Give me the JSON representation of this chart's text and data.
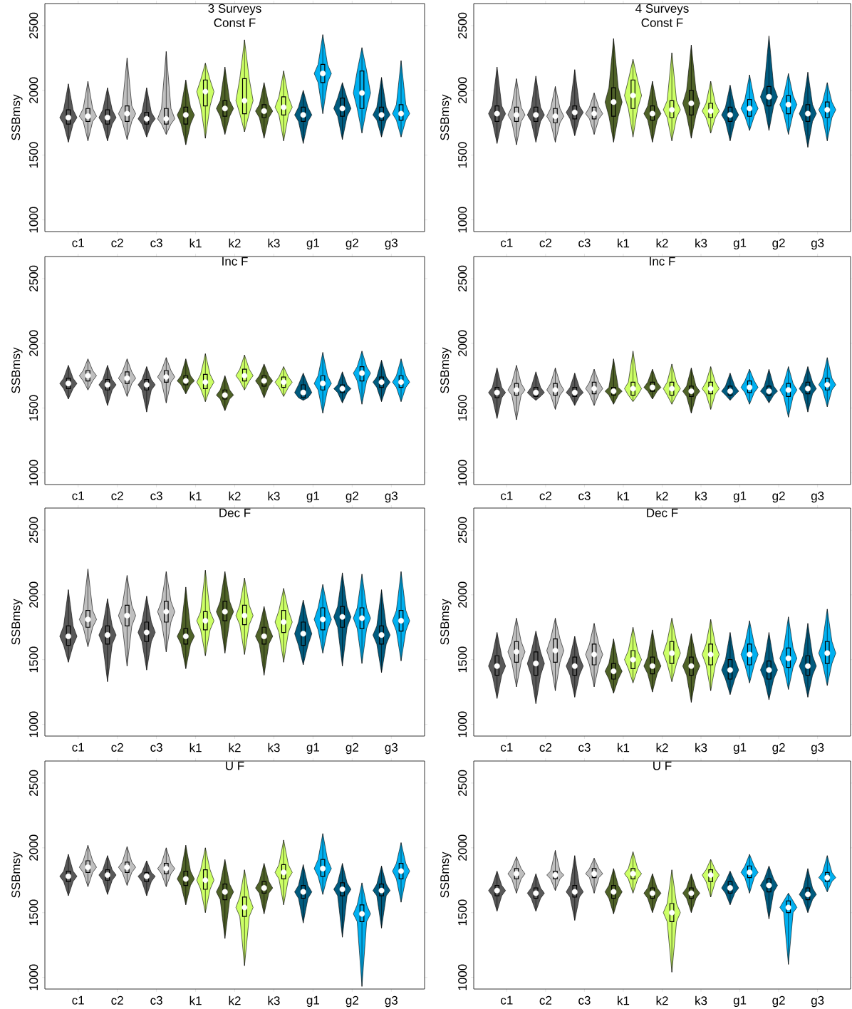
{
  "chart_data": [
    {
      "type": "box",
      "title": "3 Surveys",
      "subtitle": "Const F",
      "ylabel": "SSBmsy",
      "categories": [
        "c1",
        "c2",
        "c3",
        "k1",
        "k2",
        "k3",
        "g1",
        "g2",
        "g3"
      ],
      "ylim": [
        910,
        2670
      ],
      "yticks": [
        1000,
        1500,
        2000,
        2500
      ],
      "series": [
        {
          "colors": [
            "#595959",
            "#595959",
            "#595959",
            "#4f6228",
            "#4f6228",
            "#4f6228",
            "#005b7f",
            "#005b7f",
            "#005b7f"
          ],
          "boxes": [
            {
              "low": 1600,
              "q1": 1740,
              "median": 1790,
              "q3": 1850,
              "high": 2050
            },
            {
              "low": 1610,
              "q1": 1740,
              "median": 1790,
              "q3": 1850,
              "high": 2020
            },
            {
              "low": 1640,
              "q1": 1740,
              "median": 1780,
              "q3": 1830,
              "high": 2020
            },
            {
              "low": 1580,
              "q1": 1740,
              "median": 1810,
              "q3": 1870,
              "high": 2080
            },
            {
              "low": 1660,
              "q1": 1800,
              "median": 1860,
              "q3": 1920,
              "high": 2180
            },
            {
              "low": 1630,
              "q1": 1790,
              "median": 1840,
              "q3": 1890,
              "high": 2060
            },
            {
              "low": 1590,
              "q1": 1760,
              "median": 1810,
              "q3": 1870,
              "high": 2000
            },
            {
              "low": 1620,
              "q1": 1800,
              "median": 1860,
              "q3": 1940,
              "high": 2060
            },
            {
              "low": 1640,
              "q1": 1770,
              "median": 1810,
              "q3": 1870,
              "high": 2100
            }
          ]
        },
        {
          "colors": [
            "#bfbfbf",
            "#bfbfbf",
            "#bfbfbf",
            "#ccff66",
            "#ccff66",
            "#ccff66",
            "#00b0f0",
            "#00b0f0",
            "#00b0f0"
          ],
          "boxes": [
            {
              "low": 1610,
              "q1": 1760,
              "median": 1800,
              "q3": 1860,
              "high": 2070
            },
            {
              "low": 1620,
              "q1": 1760,
              "median": 1820,
              "q3": 1880,
              "high": 2250
            },
            {
              "low": 1660,
              "q1": 1740,
              "median": 1780,
              "q3": 1860,
              "high": 2300
            },
            {
              "low": 1630,
              "q1": 1880,
              "median": 1990,
              "q3": 2080,
              "high": 2210
            },
            {
              "low": 1680,
              "q1": 1820,
              "median": 1920,
              "q3": 2090,
              "high": 2390
            },
            {
              "low": 1610,
              "q1": 1810,
              "median": 1870,
              "q3": 1950,
              "high": 2150
            },
            {
              "low": 1820,
              "q1": 2060,
              "median": 2130,
              "q3": 2200,
              "high": 2430
            },
            {
              "low": 1670,
              "q1": 1860,
              "median": 1980,
              "q3": 2150,
              "high": 2330
            },
            {
              "low": 1640,
              "q1": 1770,
              "median": 1820,
              "q3": 1890,
              "high": 2230
            }
          ]
        }
      ]
    },
    {
      "type": "box",
      "title": "4 Surveys",
      "subtitle": "Const F",
      "ylabel": "SSBmsy",
      "categories": [
        "c1",
        "c2",
        "c3",
        "k1",
        "k2",
        "k3",
        "g1",
        "g2",
        "g3"
      ],
      "ylim": [
        910,
        2670
      ],
      "yticks": [
        1000,
        1500,
        2000,
        2500
      ],
      "series": [
        {
          "colors": [
            "#595959",
            "#595959",
            "#595959",
            "#4f6228",
            "#4f6228",
            "#4f6228",
            "#005b7f",
            "#005b7f",
            "#005b7f"
          ],
          "boxes": [
            {
              "low": 1590,
              "q1": 1760,
              "median": 1820,
              "q3": 1880,
              "high": 2180
            },
            {
              "low": 1600,
              "q1": 1760,
              "median": 1810,
              "q3": 1870,
              "high": 2110
            },
            {
              "low": 1650,
              "q1": 1780,
              "median": 1830,
              "q3": 1880,
              "high": 2160
            },
            {
              "low": 1600,
              "q1": 1800,
              "median": 1910,
              "q3": 2020,
              "high": 2400
            },
            {
              "low": 1600,
              "q1": 1770,
              "median": 1820,
              "q3": 1880,
              "high": 2070
            },
            {
              "low": 1630,
              "q1": 1810,
              "median": 1900,
              "q3": 2000,
              "high": 2350
            },
            {
              "low": 1610,
              "q1": 1760,
              "median": 1810,
              "q3": 1870,
              "high": 2040
            },
            {
              "low": 1690,
              "q1": 1880,
              "median": 1950,
              "q3": 2030,
              "high": 2420
            },
            {
              "low": 1560,
              "q1": 1760,
              "median": 1820,
              "q3": 1890,
              "high": 2140
            }
          ]
        },
        {
          "colors": [
            "#bfbfbf",
            "#bfbfbf",
            "#bfbfbf",
            "#ccff66",
            "#ccff66",
            "#ccff66",
            "#00b0f0",
            "#00b0f0",
            "#00b0f0"
          ],
          "boxes": [
            {
              "low": 1580,
              "q1": 1760,
              "median": 1810,
              "q3": 1870,
              "high": 2090
            },
            {
              "low": 1600,
              "q1": 1750,
              "median": 1800,
              "q3": 1860,
              "high": 2030
            },
            {
              "low": 1660,
              "q1": 1780,
              "median": 1820,
              "q3": 1870,
              "high": 1980
            },
            {
              "low": 1640,
              "q1": 1860,
              "median": 1960,
              "q3": 2080,
              "high": 2240
            },
            {
              "low": 1610,
              "q1": 1790,
              "median": 1850,
              "q3": 1920,
              "high": 2290
            },
            {
              "low": 1670,
              "q1": 1790,
              "median": 1840,
              "q3": 1900,
              "high": 2070
            },
            {
              "low": 1690,
              "q1": 1800,
              "median": 1860,
              "q3": 1930,
              "high": 2120
            },
            {
              "low": 1660,
              "q1": 1820,
              "median": 1890,
              "q3": 1960,
              "high": 2130
            },
            {
              "low": 1610,
              "q1": 1790,
              "median": 1850,
              "q3": 1910,
              "high": 2060
            }
          ]
        }
      ]
    },
    {
      "type": "box",
      "title": "Inc F",
      "ylabel": "SSBmsy",
      "categories": [
        "c1",
        "c2",
        "c3",
        "k1",
        "k2",
        "k3",
        "g1",
        "g2",
        "g3"
      ],
      "ylim": [
        910,
        2670
      ],
      "yticks": [
        1000,
        1500,
        2000,
        2500
      ],
      "series": [
        {
          "colors": [
            "#595959",
            "#595959",
            "#595959",
            "#4f6228",
            "#4f6228",
            "#4f6228",
            "#005b7f",
            "#005b7f",
            "#005b7f"
          ],
          "boxes": [
            {
              "low": 1570,
              "q1": 1650,
              "median": 1690,
              "q3": 1730,
              "high": 1830
            },
            {
              "low": 1520,
              "q1": 1640,
              "median": 1680,
              "q3": 1720,
              "high": 1830
            },
            {
              "low": 1470,
              "q1": 1640,
              "median": 1680,
              "q3": 1720,
              "high": 1820
            },
            {
              "low": 1610,
              "q1": 1680,
              "median": 1710,
              "q3": 1750,
              "high": 1880
            },
            {
              "low": 1480,
              "q1": 1570,
              "median": 1600,
              "q3": 1640,
              "high": 1750
            },
            {
              "low": 1580,
              "q1": 1670,
              "median": 1710,
              "q3": 1750,
              "high": 1840
            },
            {
              "low": 1560,
              "q1": 1580,
              "median": 1620,
              "q3": 1680,
              "high": 1770
            },
            {
              "low": 1540,
              "q1": 1620,
              "median": 1650,
              "q3": 1680,
              "high": 1780
            },
            {
              "low": 1550,
              "q1": 1660,
              "median": 1700,
              "q3": 1740,
              "high": 1870
            }
          ]
        },
        {
          "colors": [
            "#bfbfbf",
            "#bfbfbf",
            "#bfbfbf",
            "#ccff66",
            "#ccff66",
            "#ccff66",
            "#00b0f0",
            "#00b0f0",
            "#00b0f0"
          ],
          "boxes": [
            {
              "low": 1640,
              "q1": 1710,
              "median": 1750,
              "q3": 1790,
              "high": 1880
            },
            {
              "low": 1590,
              "q1": 1690,
              "median": 1730,
              "q3": 1780,
              "high": 1880
            },
            {
              "low": 1540,
              "q1": 1700,
              "median": 1740,
              "q3": 1790,
              "high": 1890
            },
            {
              "low": 1550,
              "q1": 1650,
              "median": 1700,
              "q3": 1760,
              "high": 1920
            },
            {
              "low": 1640,
              "q1": 1710,
              "median": 1750,
              "q3": 1800,
              "high": 1910
            },
            {
              "low": 1590,
              "q1": 1660,
              "median": 1700,
              "q3": 1740,
              "high": 1820
            },
            {
              "low": 1460,
              "q1": 1640,
              "median": 1690,
              "q3": 1750,
              "high": 1930
            },
            {
              "low": 1530,
              "q1": 1710,
              "median": 1770,
              "q3": 1820,
              "high": 1940
            },
            {
              "low": 1550,
              "q1": 1660,
              "median": 1700,
              "q3": 1750,
              "high": 1880
            }
          ]
        }
      ]
    },
    {
      "type": "box",
      "title": "Inc F",
      "ylabel": "SSBmsy",
      "categories": [
        "c1",
        "c2",
        "c3",
        "k1",
        "k2",
        "k3",
        "g1",
        "g2",
        "g3"
      ],
      "ylim": [
        910,
        2670
      ],
      "yticks": [
        1000,
        1500,
        2000,
        2500
      ],
      "series": [
        {
          "colors": [
            "#595959",
            "#595959",
            "#595959",
            "#4f6228",
            "#4f6228",
            "#4f6228",
            "#005b7f",
            "#005b7f",
            "#005b7f"
          ],
          "boxes": [
            {
              "low": 1420,
              "q1": 1580,
              "median": 1620,
              "q3": 1660,
              "high": 1810
            },
            {
              "low": 1560,
              "q1": 1590,
              "median": 1620,
              "q3": 1660,
              "high": 1780
            },
            {
              "low": 1520,
              "q1": 1590,
              "median": 1620,
              "q3": 1660,
              "high": 1770
            },
            {
              "low": 1530,
              "q1": 1600,
              "median": 1630,
              "q3": 1660,
              "high": 1880
            },
            {
              "low": 1570,
              "q1": 1630,
              "median": 1660,
              "q3": 1700,
              "high": 1800
            },
            {
              "low": 1460,
              "q1": 1590,
              "median": 1630,
              "q3": 1670,
              "high": 1810
            },
            {
              "low": 1560,
              "q1": 1600,
              "median": 1630,
              "q3": 1670,
              "high": 1770
            },
            {
              "low": 1540,
              "q1": 1600,
              "median": 1630,
              "q3": 1670,
              "high": 1800
            },
            {
              "low": 1470,
              "q1": 1610,
              "median": 1650,
              "q3": 1700,
              "high": 1820
            }
          ]
        },
        {
          "colors": [
            "#bfbfbf",
            "#bfbfbf",
            "#bfbfbf",
            "#ccff66",
            "#ccff66",
            "#ccff66",
            "#00b0f0",
            "#00b0f0",
            "#00b0f0"
          ],
          "boxes": [
            {
              "low": 1410,
              "q1": 1600,
              "median": 1640,
              "q3": 1690,
              "high": 1830
            },
            {
              "low": 1490,
              "q1": 1600,
              "median": 1640,
              "q3": 1690,
              "high": 1810
            },
            {
              "low": 1520,
              "q1": 1610,
              "median": 1650,
              "q3": 1700,
              "high": 1800
            },
            {
              "low": 1550,
              "q1": 1600,
              "median": 1650,
              "q3": 1700,
              "high": 1940
            },
            {
              "low": 1530,
              "q1": 1600,
              "median": 1650,
              "q3": 1700,
              "high": 1840
            },
            {
              "low": 1490,
              "q1": 1610,
              "median": 1650,
              "q3": 1700,
              "high": 1820
            },
            {
              "low": 1530,
              "q1": 1620,
              "median": 1660,
              "q3": 1710,
              "high": 1800
            },
            {
              "low": 1430,
              "q1": 1590,
              "median": 1640,
              "q3": 1690,
              "high": 1820
            },
            {
              "low": 1510,
              "q1": 1640,
              "median": 1680,
              "q3": 1730,
              "high": 1890
            }
          ]
        }
      ]
    },
    {
      "type": "box",
      "title": "Dec F",
      "ylabel": "SSBmsy",
      "categories": [
        "c1",
        "c2",
        "c3",
        "k1",
        "k2",
        "k3",
        "g1",
        "g2",
        "g3"
      ],
      "ylim": [
        910,
        2670
      ],
      "yticks": [
        1000,
        1500,
        2000,
        2500
      ],
      "series": [
        {
          "colors": [
            "#595959",
            "#595959",
            "#595959",
            "#4f6228",
            "#4f6228",
            "#4f6228",
            "#005b7f",
            "#005b7f",
            "#005b7f"
          ],
          "boxes": [
            {
              "low": 1480,
              "q1": 1610,
              "median": 1680,
              "q3": 1760,
              "high": 2040
            },
            {
              "low": 1330,
              "q1": 1620,
              "median": 1690,
              "q3": 1760,
              "high": 1970
            },
            {
              "low": 1420,
              "q1": 1640,
              "median": 1710,
              "q3": 1790,
              "high": 1990
            },
            {
              "low": 1430,
              "q1": 1620,
              "median": 1680,
              "q3": 1740,
              "high": 2060
            },
            {
              "low": 1550,
              "q1": 1800,
              "median": 1870,
              "q3": 1950,
              "high": 2180
            },
            {
              "low": 1380,
              "q1": 1620,
              "median": 1680,
              "q3": 1750,
              "high": 1910
            },
            {
              "low": 1460,
              "q1": 1610,
              "median": 1700,
              "q3": 1790,
              "high": 1960
            },
            {
              "low": 1450,
              "q1": 1750,
              "median": 1830,
              "q3": 1910,
              "high": 2170
            },
            {
              "low": 1400,
              "q1": 1620,
              "median": 1690,
              "q3": 1760,
              "high": 2040
            }
          ]
        },
        {
          "colors": [
            "#bfbfbf",
            "#bfbfbf",
            "#bfbfbf",
            "#ccff66",
            "#ccff66",
            "#ccff66",
            "#00b0f0",
            "#00b0f0",
            "#00b0f0"
          ],
          "boxes": [
            {
              "low": 1600,
              "q1": 1750,
              "median": 1810,
              "q3": 1880,
              "high": 2200
            },
            {
              "low": 1450,
              "q1": 1760,
              "median": 1840,
              "q3": 1920,
              "high": 2150
            },
            {
              "low": 1560,
              "q1": 1790,
              "median": 1870,
              "q3": 1950,
              "high": 2180
            },
            {
              "low": 1530,
              "q1": 1730,
              "median": 1800,
              "q3": 1870,
              "high": 2190
            },
            {
              "low": 1540,
              "q1": 1770,
              "median": 1840,
              "q3": 1920,
              "high": 2130
            },
            {
              "low": 1480,
              "q1": 1710,
              "median": 1790,
              "q3": 1880,
              "high": 2050
            },
            {
              "low": 1550,
              "q1": 1730,
              "median": 1810,
              "q3": 1900,
              "high": 2080
            },
            {
              "low": 1470,
              "q1": 1740,
              "median": 1820,
              "q3": 1900,
              "high": 2160
            },
            {
              "low": 1490,
              "q1": 1720,
              "median": 1800,
              "q3": 1880,
              "high": 2180
            }
          ]
        }
      ]
    },
    {
      "type": "box",
      "title": "Dec F",
      "ylabel": "SSBmsy",
      "categories": [
        "c1",
        "c2",
        "c3",
        "k1",
        "k2",
        "k3",
        "g1",
        "g2",
        "g3"
      ],
      "ylim": [
        910,
        2670
      ],
      "yticks": [
        1000,
        1500,
        2000,
        2500
      ],
      "series": [
        {
          "colors": [
            "#595959",
            "#595959",
            "#595959",
            "#4f6228",
            "#4f6228",
            "#4f6228",
            "#005b7f",
            "#005b7f",
            "#005b7f"
          ],
          "boxes": [
            {
              "low": 1200,
              "q1": 1380,
              "median": 1450,
              "q3": 1530,
              "high": 1710
            },
            {
              "low": 1160,
              "q1": 1380,
              "median": 1470,
              "q3": 1560,
              "high": 1720
            },
            {
              "low": 1210,
              "q1": 1380,
              "median": 1450,
              "q3": 1520,
              "high": 1680
            },
            {
              "low": 1240,
              "q1": 1350,
              "median": 1410,
              "q3": 1470,
              "high": 1660
            },
            {
              "low": 1250,
              "q1": 1390,
              "median": 1450,
              "q3": 1520,
              "high": 1730
            },
            {
              "low": 1170,
              "q1": 1380,
              "median": 1450,
              "q3": 1520,
              "high": 1700
            },
            {
              "low": 1230,
              "q1": 1350,
              "median": 1420,
              "q3": 1500,
              "high": 1710
            },
            {
              "low": 1190,
              "q1": 1350,
              "median": 1420,
              "q3": 1490,
              "high": 1710
            },
            {
              "low": 1210,
              "q1": 1380,
              "median": 1450,
              "q3": 1530,
              "high": 1780
            }
          ]
        },
        {
          "colors": [
            "#bfbfbf",
            "#bfbfbf",
            "#bfbfbf",
            "#ccff66",
            "#ccff66",
            "#ccff66",
            "#00b0f0",
            "#00b0f0",
            "#00b0f0"
          ],
          "boxes": [
            {
              "low": 1290,
              "q1": 1480,
              "median": 1560,
              "q3": 1640,
              "high": 1820
            },
            {
              "low": 1260,
              "q1": 1480,
              "median": 1570,
              "q3": 1660,
              "high": 1820
            },
            {
              "low": 1290,
              "q1": 1460,
              "median": 1540,
              "q3": 1620,
              "high": 1780
            },
            {
              "low": 1320,
              "q1": 1430,
              "median": 1500,
              "q3": 1570,
              "high": 1750
            },
            {
              "low": 1330,
              "q1": 1470,
              "median": 1550,
              "q3": 1640,
              "high": 1820
            },
            {
              "low": 1260,
              "q1": 1460,
              "median": 1540,
              "q3": 1620,
              "high": 1810
            },
            {
              "low": 1320,
              "q1": 1460,
              "median": 1540,
              "q3": 1620,
              "high": 1800
            },
            {
              "low": 1270,
              "q1": 1440,
              "median": 1510,
              "q3": 1590,
              "high": 1830
            },
            {
              "low": 1300,
              "q1": 1470,
              "median": 1550,
              "q3": 1640,
              "high": 1890
            }
          ]
        }
      ]
    },
    {
      "type": "box",
      "title": "U F",
      "ylabel": "SSBmsy",
      "categories": [
        "c1",
        "c2",
        "c3",
        "k1",
        "k2",
        "k3",
        "g1",
        "g2",
        "g3"
      ],
      "ylim": [
        910,
        2670
      ],
      "yticks": [
        1000,
        1500,
        2000,
        2500
      ],
      "series": [
        {
          "colors": [
            "#595959",
            "#595959",
            "#595959",
            "#4f6228",
            "#4f6228",
            "#4f6228",
            "#005b7f",
            "#005b7f",
            "#005b7f"
          ],
          "boxes": [
            {
              "low": 1630,
              "q1": 1740,
              "median": 1780,
              "q3": 1820,
              "high": 1950
            },
            {
              "low": 1640,
              "q1": 1750,
              "median": 1790,
              "q3": 1830,
              "high": 1940
            },
            {
              "low": 1630,
              "q1": 1740,
              "median": 1780,
              "q3": 1810,
              "high": 1900
            },
            {
              "low": 1560,
              "q1": 1710,
              "median": 1760,
              "q3": 1820,
              "high": 2020
            },
            {
              "low": 1300,
              "q1": 1600,
              "median": 1660,
              "q3": 1720,
              "high": 1910
            },
            {
              "low": 1490,
              "q1": 1650,
              "median": 1690,
              "q3": 1740,
              "high": 1880
            },
            {
              "low": 1420,
              "q1": 1610,
              "median": 1660,
              "q3": 1710,
              "high": 1870
            },
            {
              "low": 1310,
              "q1": 1630,
              "median": 1680,
              "q3": 1730,
              "high": 1880
            },
            {
              "low": 1380,
              "q1": 1630,
              "median": 1670,
              "q3": 1720,
              "high": 1860
            }
          ]
        },
        {
          "colors": [
            "#bfbfbf",
            "#bfbfbf",
            "#bfbfbf",
            "#ccff66",
            "#ccff66",
            "#ccff66",
            "#00b0f0",
            "#00b0f0",
            "#00b0f0"
          ],
          "boxes": [
            {
              "low": 1700,
              "q1": 1810,
              "median": 1850,
              "q3": 1900,
              "high": 2020
            },
            {
              "low": 1710,
              "q1": 1810,
              "median": 1850,
              "q3": 1890,
              "high": 2010
            },
            {
              "low": 1700,
              "q1": 1800,
              "median": 1840,
              "q3": 1880,
              "high": 2000
            },
            {
              "low": 1500,
              "q1": 1680,
              "median": 1750,
              "q3": 1830,
              "high": 2000
            },
            {
              "low": 1090,
              "q1": 1470,
              "median": 1540,
              "q3": 1620,
              "high": 1830
            },
            {
              "low": 1560,
              "q1": 1760,
              "median": 1810,
              "q3": 1870,
              "high": 2060
            },
            {
              "low": 1640,
              "q1": 1780,
              "median": 1840,
              "q3": 1910,
              "high": 2110
            },
            {
              "low": 930,
              "q1": 1430,
              "median": 1490,
              "q3": 1560,
              "high": 1730
            },
            {
              "low": 1580,
              "q1": 1760,
              "median": 1820,
              "q3": 1880,
              "high": 2040
            }
          ]
        }
      ]
    },
    {
      "type": "box",
      "title": "U F",
      "ylabel": "SSBmsy",
      "categories": [
        "c1",
        "c2",
        "c3",
        "k1",
        "k2",
        "k3",
        "g1",
        "g2",
        "g3"
      ],
      "ylim": [
        910,
        2670
      ],
      "yticks": [
        1000,
        1500,
        2000,
        2500
      ],
      "series": [
        {
          "colors": [
            "#595959",
            "#595959",
            "#595959",
            "#4f6228",
            "#4f6228",
            "#4f6228",
            "#005b7f",
            "#005b7f",
            "#005b7f"
          ],
          "boxes": [
            {
              "low": 1510,
              "q1": 1630,
              "median": 1670,
              "q3": 1710,
              "high": 1820
            },
            {
              "low": 1510,
              "q1": 1610,
              "median": 1650,
              "q3": 1690,
              "high": 1800
            },
            {
              "low": 1440,
              "q1": 1620,
              "median": 1660,
              "q3": 1710,
              "high": 1940
            },
            {
              "low": 1490,
              "q1": 1610,
              "median": 1660,
              "q3": 1710,
              "high": 1840
            },
            {
              "low": 1500,
              "q1": 1610,
              "median": 1650,
              "q3": 1690,
              "high": 1800
            },
            {
              "low": 1500,
              "q1": 1610,
              "median": 1650,
              "q3": 1690,
              "high": 1800
            },
            {
              "low": 1560,
              "q1": 1650,
              "median": 1690,
              "q3": 1740,
              "high": 1820
            },
            {
              "low": 1450,
              "q1": 1660,
              "median": 1710,
              "q3": 1760,
              "high": 1860
            },
            {
              "low": 1500,
              "q1": 1600,
              "median": 1640,
              "q3": 1690,
              "high": 1840
            }
          ]
        },
        {
          "colors": [
            "#bfbfbf",
            "#bfbfbf",
            "#bfbfbf",
            "#ccff66",
            "#ccff66",
            "#ccff66",
            "#00b0f0",
            "#00b0f0",
            "#00b0f0"
          ],
          "boxes": [
            {
              "low": 1650,
              "q1": 1760,
              "median": 1800,
              "q3": 1840,
              "high": 1930
            },
            {
              "low": 1670,
              "q1": 1760,
              "median": 1790,
              "q3": 1820,
              "high": 1980
            },
            {
              "low": 1650,
              "q1": 1770,
              "median": 1800,
              "q3": 1840,
              "high": 1920
            },
            {
              "low": 1650,
              "q1": 1760,
              "median": 1800,
              "q3": 1840,
              "high": 1970
            },
            {
              "low": 1040,
              "q1": 1430,
              "median": 1500,
              "q3": 1570,
              "high": 1830
            },
            {
              "low": 1620,
              "q1": 1740,
              "median": 1790,
              "q3": 1830,
              "high": 1910
            },
            {
              "low": 1650,
              "q1": 1770,
              "median": 1810,
              "q3": 1860,
              "high": 1950
            },
            {
              "low": 1100,
              "q1": 1500,
              "median": 1540,
              "q3": 1590,
              "high": 1650
            },
            {
              "low": 1660,
              "q1": 1740,
              "median": 1770,
              "q3": 1810,
              "high": 1940
            }
          ]
        }
      ]
    }
  ]
}
